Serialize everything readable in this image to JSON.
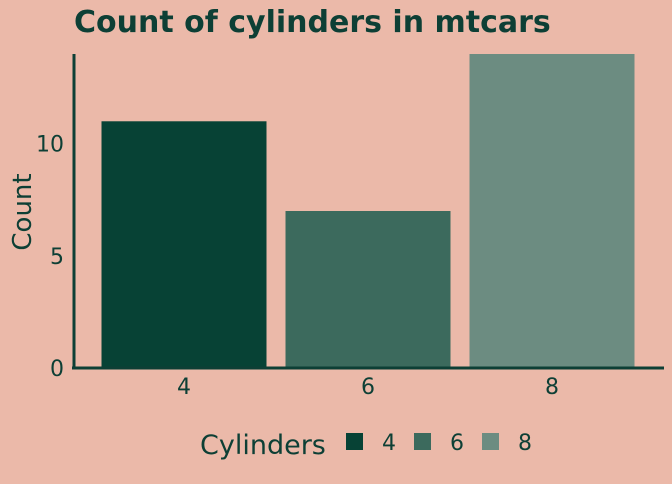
{
  "chart_data": {
    "type": "bar",
    "title": "Count of cylinders in mtcars",
    "xlabel": "",
    "ylabel": "Count",
    "categories": [
      "4",
      "6",
      "8"
    ],
    "values": [
      11,
      7,
      14
    ],
    "ylim": [
      0,
      14
    ],
    "yticks": [
      0,
      5,
      10
    ],
    "grid": false,
    "legend": {
      "title": "Cylinders",
      "placement": "bottom",
      "entries": [
        "4",
        "6",
        "8"
      ]
    },
    "colors": {
      "background": "#ebb9a9",
      "text": "#0d3f35",
      "axis": "#0d3f35",
      "bars": [
        "#074235",
        "#3c6a5d",
        "#6c8c81"
      ]
    }
  }
}
